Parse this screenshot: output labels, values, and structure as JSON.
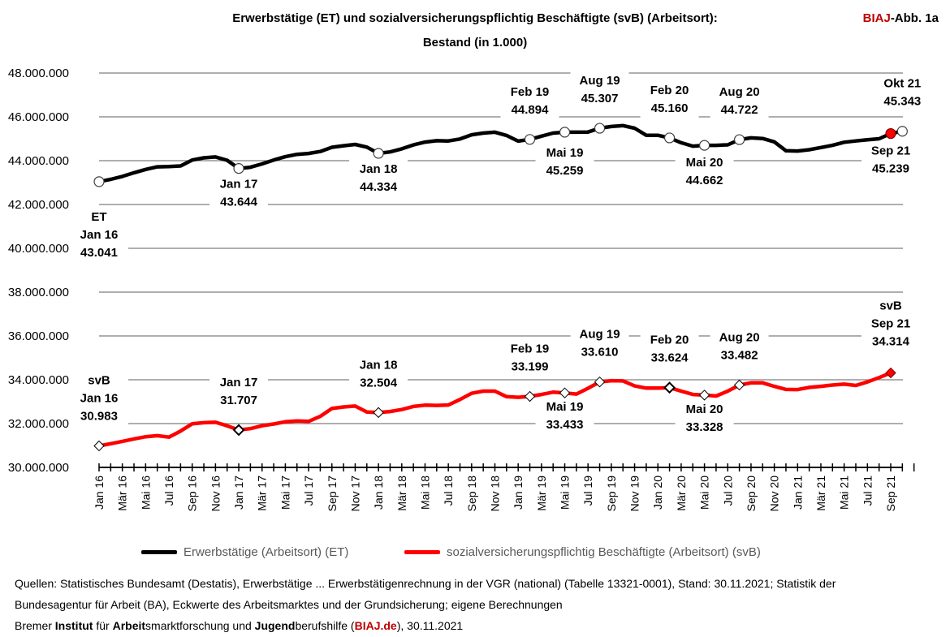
{
  "header": {
    "title_line1": "Erwerbstätige (ET) und sozialversicherungspflichtig Beschäftigte (svB) (Arbeitsort):",
    "title_line2": "Bestand (in 1.000)",
    "badge_red": "BIAJ",
    "badge_rest": "-Abb. 1a"
  },
  "colors": {
    "et": "#000000",
    "svb": "#ff0000",
    "grid": "#7f7f7f",
    "accent": "#c00000"
  },
  "legend": {
    "et": "Erwerbstätige (Arbeitsort) (ET)",
    "svb": "sozialversicherungspflichtig Beschäftigte (Arbeitsort) (svB)"
  },
  "footer": {
    "line1": "Quellen: Statistisches Bundesamt (Destatis), Erwerbstätige ... Erwerbstätigenrechnung in der VGR (national) (Tabelle 13321-0001), Stand: 30.11.2021; Statistik der",
    "line2": "Bundesagentur für Arbeit (BA), Eckwerte des Arbeitsmarktes und der Grundsicherung; eigene Berechnungen",
    "line3_parts": [
      "Bremer ",
      "Institut",
      " für ",
      "Arbeit",
      "smarktforschung und ",
      "Jugend",
      "berufshilfe (",
      "BIAJ.de",
      "), 30.11.2021"
    ]
  },
  "chart_data": {
    "type": "line",
    "title": "Erwerbstätige (ET) und sozialversicherungspflichtig Beschäftigte (svB) (Arbeitsort): Bestand (in 1.000)",
    "ylim": [
      30000000,
      48000000
    ],
    "y_ticks": [
      "30.000.000",
      "32.000.000",
      "34.000.000",
      "36.000.000",
      "38.000.000",
      "40.000.000",
      "42.000.000",
      "44.000.000",
      "46.000.000",
      "48.000.000"
    ],
    "grid": "horizontal",
    "legend_position": "bottom",
    "x_tick_labels": [
      "Jan 16",
      "Mär 16",
      "Mai 16",
      "Jul 16",
      "Sep 16",
      "Nov 16",
      "Jan 17",
      "Mär 17",
      "Mai 17",
      "Jul 17",
      "Sep 17",
      "Nov 17",
      "Jan 18",
      "Mär 18",
      "Mai 18",
      "Jul 18",
      "Sep 18",
      "Nov 18",
      "Jan 19",
      "Mär 19",
      "Mai 19",
      "Jul 19",
      "Sep 19",
      "Nov 19",
      "Jan 20",
      "Mär 20",
      "Mai 20",
      "Jul 20",
      "Sep 20",
      "Nov 20",
      "Jan 21",
      "Mär 21",
      "Mai 21",
      "Jul 21",
      "Sep 21"
    ],
    "months": 70,
    "series": [
      {
        "name": "Erwerbstätige (Arbeitsort) (ET)",
        "values": [
          43041,
          43150,
          43280,
          43450,
          43600,
          43720,
          43730,
          43760,
          44030,
          44130,
          44170,
          44020,
          43644,
          43700,
          43850,
          44030,
          44180,
          44290,
          44330,
          44420,
          44610,
          44680,
          44740,
          44620,
          44334,
          44400,
          44540,
          44720,
          44850,
          44910,
          44900,
          44990,
          45180,
          45260,
          45300,
          45150,
          44894,
          44970,
          45120,
          45259,
          45300,
          45300,
          45307,
          45480,
          45560,
          45600,
          45480,
          45160,
          45160,
          45040,
          44820,
          44662,
          44700,
          44700,
          44722,
          44960,
          45040,
          45010,
          44860,
          44450,
          44440,
          44500,
          44600,
          44700,
          44840,
          44900,
          44950,
          45000,
          45239,
          45343
        ]
      },
      {
        "name": "sozialversicherungspflichtig Beschäftigte (Arbeitsort) (svB)",
        "values": [
          30983,
          31080,
          31190,
          31300,
          31400,
          31450,
          31380,
          31660,
          31990,
          32040,
          32060,
          31900,
          31707,
          31770,
          31900,
          31980,
          32080,
          32120,
          32100,
          32330,
          32690,
          32760,
          32800,
          32530,
          32504,
          32550,
          32640,
          32780,
          32840,
          32830,
          32850,
          33100,
          33380,
          33480,
          33480,
          33230,
          33199,
          33240,
          33330,
          33433,
          33400,
          33350,
          33610,
          33900,
          33960,
          33950,
          33720,
          33620,
          33624,
          33640,
          33480,
          33328,
          33300,
          33260,
          33482,
          33760,
          33860,
          33860,
          33700,
          33560,
          33550,
          33650,
          33700,
          33760,
          33800,
          33740,
          33900,
          34100,
          34314
        ]
      }
    ],
    "annotations": [
      {
        "series": 0,
        "month": 0,
        "lines": [
          "ET",
          "Jan 16",
          "43.041"
        ]
      },
      {
        "series": 0,
        "month": 12,
        "lines": [
          "Jan 17",
          "43.644"
        ]
      },
      {
        "series": 0,
        "month": 24,
        "lines": [
          "Jan 18",
          "44.334"
        ]
      },
      {
        "series": 0,
        "month": 37,
        "lines": [
          "Feb 19",
          "44.894"
        ]
      },
      {
        "series": 0,
        "month": 40,
        "lines": [
          "Mai 19",
          "45.259"
        ]
      },
      {
        "series": 0,
        "month": 43,
        "lines": [
          "Aug 19",
          "45.307"
        ]
      },
      {
        "series": 0,
        "month": 49,
        "lines": [
          "Feb 20",
          "45.160"
        ]
      },
      {
        "series": 0,
        "month": 52,
        "lines": [
          "Mai 20",
          "44.662"
        ]
      },
      {
        "series": 0,
        "month": 55,
        "lines": [
          "Aug 20",
          "44.722"
        ]
      },
      {
        "series": 0,
        "month": 68,
        "lines": [
          "Sep 21",
          "45.239"
        ]
      },
      {
        "series": 0,
        "month": 69,
        "lines": [
          "Okt 21",
          "45.343"
        ]
      },
      {
        "series": 1,
        "month": 0,
        "lines": [
          "svB",
          "Jan 16",
          "30.983"
        ]
      },
      {
        "series": 1,
        "month": 12,
        "lines": [
          "Jan 17",
          "31.707"
        ]
      },
      {
        "series": 1,
        "month": 24,
        "lines": [
          "Jan 18",
          "32.504"
        ]
      },
      {
        "series": 1,
        "month": 37,
        "lines": [
          "Feb 19",
          "33.199"
        ]
      },
      {
        "series": 1,
        "month": 40,
        "lines": [
          "Mai 19",
          "33.433"
        ]
      },
      {
        "series": 1,
        "month": 43,
        "lines": [
          "Aug 19",
          "33.610"
        ]
      },
      {
        "series": 1,
        "month": 49,
        "lines": [
          "Feb 20",
          "33.624"
        ]
      },
      {
        "series": 1,
        "month": 52,
        "lines": [
          "Mai 20",
          "33.328"
        ]
      },
      {
        "series": 1,
        "month": 55,
        "lines": [
          "Aug 20",
          "33.482"
        ]
      },
      {
        "series": 1,
        "month": 68,
        "lines": [
          "svB",
          "Sep 21",
          "34.314"
        ]
      }
    ]
  }
}
